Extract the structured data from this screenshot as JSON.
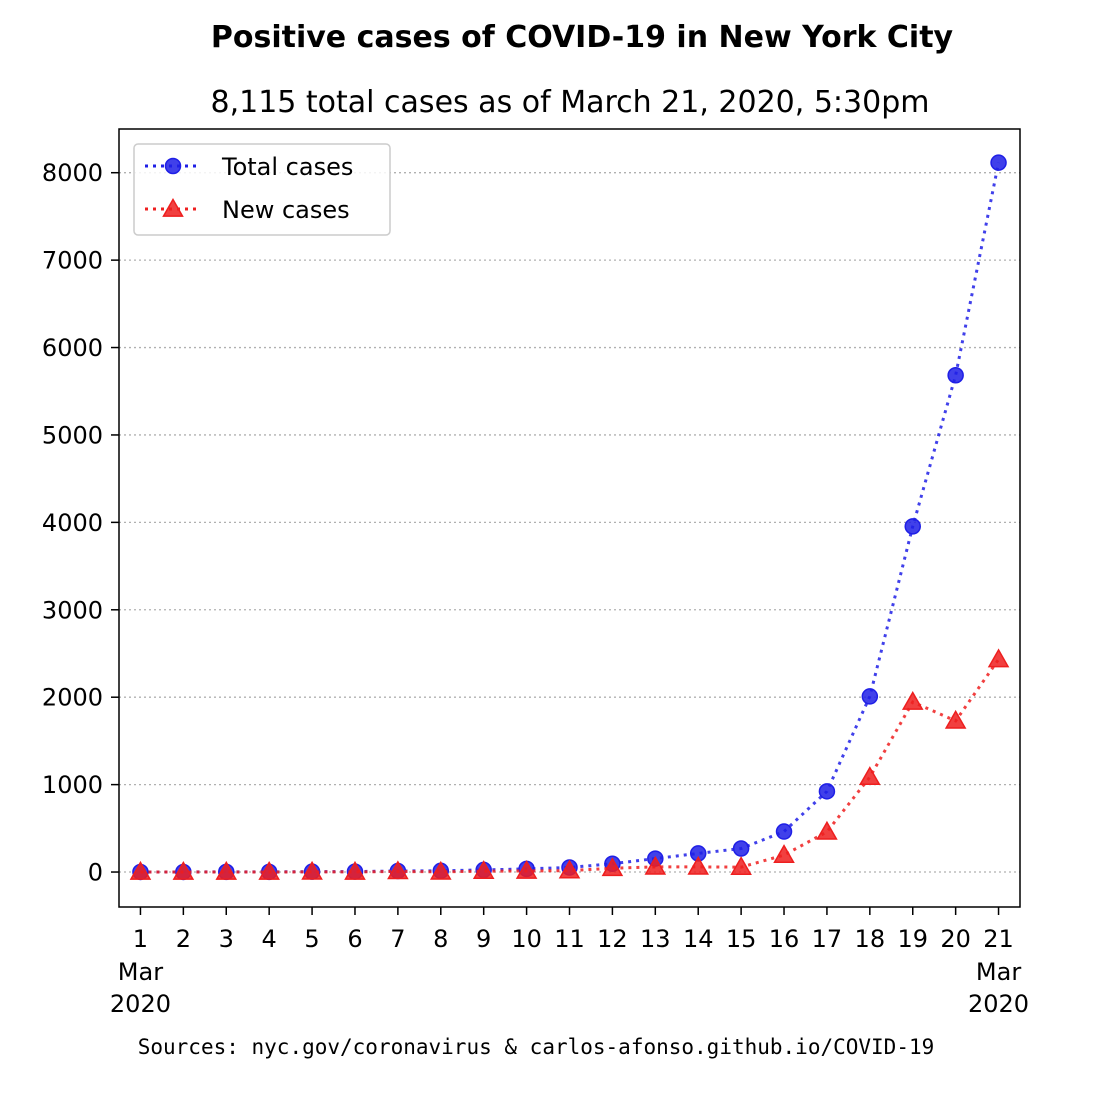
{
  "chart_data": {
    "type": "line",
    "title": "Positive cases of COVID-19 in New York City",
    "subtitle": "8,115 total cases as of March 21, 2020, 5:30pm",
    "xlabel": "",
    "ylabel": "",
    "x": [
      1,
      2,
      3,
      4,
      5,
      6,
      7,
      8,
      9,
      10,
      11,
      12,
      13,
      14,
      15,
      16,
      17,
      18,
      19,
      20,
      21
    ],
    "x_tick_labels": [
      "1",
      "2",
      "3",
      "4",
      "5",
      "6",
      "7",
      "8",
      "9",
      "10",
      "11",
      "12",
      "13",
      "14",
      "15",
      "16",
      "17",
      "18",
      "19",
      "20",
      "21"
    ],
    "x_start_label": [
      "Mar",
      "2020"
    ],
    "x_end_label": [
      "Mar",
      "2020"
    ],
    "xlim": [
      0.5,
      21.5
    ],
    "ylim": [
      -400,
      8500
    ],
    "y_ticks": [
      0,
      1000,
      2000,
      3000,
      4000,
      5000,
      6000,
      7000,
      8000
    ],
    "y_tick_labels": [
      "0",
      "1000",
      "2000",
      "3000",
      "4000",
      "5000",
      "6000",
      "7000",
      "8000"
    ],
    "grid": "horizontal dotted",
    "legend_position": "upper-left",
    "series": [
      {
        "name": "Total cases",
        "color": "#1f1fe6",
        "marker": "circle",
        "line_style": "dotted",
        "values": [
          1,
          1,
          2,
          2,
          4,
          5,
          12,
          14,
          24,
          36,
          52,
          95,
          154,
          213,
          269,
          463,
          923,
          2009,
          3954,
          5683,
          8115
        ]
      },
      {
        "name": "New cases",
        "color": "#ee1f1f",
        "marker": "triangle",
        "line_style": "dotted",
        "values": [
          1,
          0,
          1,
          0,
          2,
          1,
          7,
          2,
          10,
          12,
          16,
          43,
          59,
          59,
          56,
          194,
          460,
          1086,
          1945,
          1729,
          2432
        ]
      }
    ],
    "source": "Sources: nyc.gov/coronavirus & carlos-afonso.github.io/COVID-19"
  }
}
